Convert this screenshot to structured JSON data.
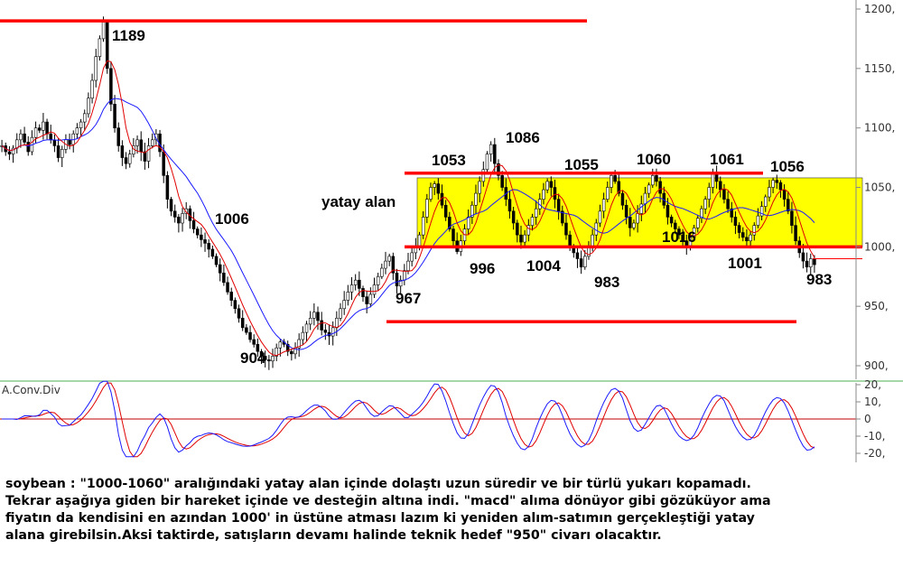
{
  "colors": {
    "candle": "#000000",
    "ma_fast": "#e00000",
    "ma_slow": "#1a1aff",
    "level_line": "#ff0000",
    "range_box": "#ffff00",
    "indicator_main": "#1a1aff",
    "indicator_signal": "#e00000",
    "zero_line": "#c00000",
    "panel_divider": "#4caf50"
  },
  "chart_data": [
    {
      "type": "line",
      "subtype": "candlestick",
      "series": [
        {
          "values": [
            1085,
            1080,
            1078,
            1083,
            1090,
            1095,
            1088,
            1080,
            1092,
            1100,
            1098,
            1105,
            1095,
            1090,
            1085,
            1075,
            1082,
            1090,
            1086,
            1095,
            1100,
            1105,
            1112,
            1125,
            1140,
            1160,
            1175,
            1189,
            1150,
            1120,
            1100,
            1085,
            1075,
            1070,
            1078,
            1085,
            1090,
            1080,
            1072,
            1085,
            1090,
            1095,
            1080,
            1060,
            1040,
            1030,
            1025,
            1020,
            1028,
            1032,
            1022,
            1015,
            1010,
            1006,
            1003,
            998,
            992,
            985,
            978,
            970,
            962,
            955,
            948,
            940,
            932,
            928,
            922,
            918,
            912,
            908,
            905,
            904,
            908,
            915,
            920,
            918,
            912,
            910,
            915,
            922,
            928,
            935,
            940,
            945,
            938,
            930,
            928,
            925,
            932,
            940,
            948,
            955,
            962,
            968,
            972,
            965,
            958,
            952,
            960,
            968,
            975,
            982,
            988,
            992,
            978,
            967,
            972,
            980,
            988,
            995,
            1000,
            1010,
            1025,
            1040,
            1050,
            1053,
            1045,
            1035,
            1025,
            1015,
            1005,
            996,
            1005,
            1015,
            1025,
            1035,
            1045,
            1055,
            1065,
            1078,
            1086,
            1070,
            1060,
            1050,
            1040,
            1030,
            1020,
            1010,
            1004,
            1010,
            1018,
            1025,
            1032,
            1040,
            1048,
            1055,
            1050,
            1040,
            1030,
            1020,
            1010,
            1000,
            995,
            990,
            983,
            992,
            1000,
            1010,
            1020,
            1030,
            1040,
            1050,
            1060,
            1055,
            1045,
            1035,
            1025,
            1016,
            1020,
            1028,
            1036,
            1045,
            1052,
            1060,
            1055,
            1045,
            1035,
            1025,
            1020,
            1015,
            1010,
            1005,
            1001,
            1008,
            1016,
            1024,
            1032,
            1040,
            1050,
            1061,
            1055,
            1048,
            1040,
            1032,
            1025,
            1018,
            1012,
            1008,
            1005,
            1010,
            1018,
            1026,
            1034,
            1042,
            1050,
            1056,
            1054,
            1048,
            1040,
            1030,
            1018,
            1005,
            995,
            988,
            983,
            990,
            985
          ]
        },
        {
          "name": "",
          "values": []
        },
        {
          "name": "",
          "values": []
        }
      ],
      "annotations": [
        "1189",
        "1006",
        "904",
        "1053",
        "1086",
        "1055",
        "1060",
        "1061",
        "1056",
        "996",
        "1004",
        "983",
        "1016",
        "1001",
        "983",
        "967",
        "yatay alan"
      ],
      "ylim": [
        890,
        1210
      ],
      "yticks": [
        "1200,",
        "1150,",
        "1100,",
        "1050,",
        "1000,",
        "950,",
        "900,"
      ],
      "hlines": [
        1190,
        1062,
        1000,
        937
      ],
      "shaded_band": [
        1000,
        1058
      ],
      "grid": false
    },
    {
      "type": "line",
      "title": "A.Conv.Div",
      "ylim": [
        -25,
        25
      ],
      "yticks": [
        "20,",
        "10,",
        "0",
        "-10,",
        "-20,"
      ],
      "zero_line": true
    }
  ],
  "note": "soybean : \"1000-1060\" aralığındaki yatay alan içinde dolaştı uzun süredir ve bir türlü yukarı kopamadı.\nTekrar aşağıya giden bir hareket içinde ve desteğin altına indi. \"macd\" alıma dönüyor gibi gözüküyor ama\nfiyatın da kendisini en azından 1000' in üstüne atması lazım ki yeniden alım-satımın gerçekleştiği yatay\nalana girebilsin.Aksi taktirde, satışların devamı halinde teknik hedef \"950\" civarı olacaktır."
}
